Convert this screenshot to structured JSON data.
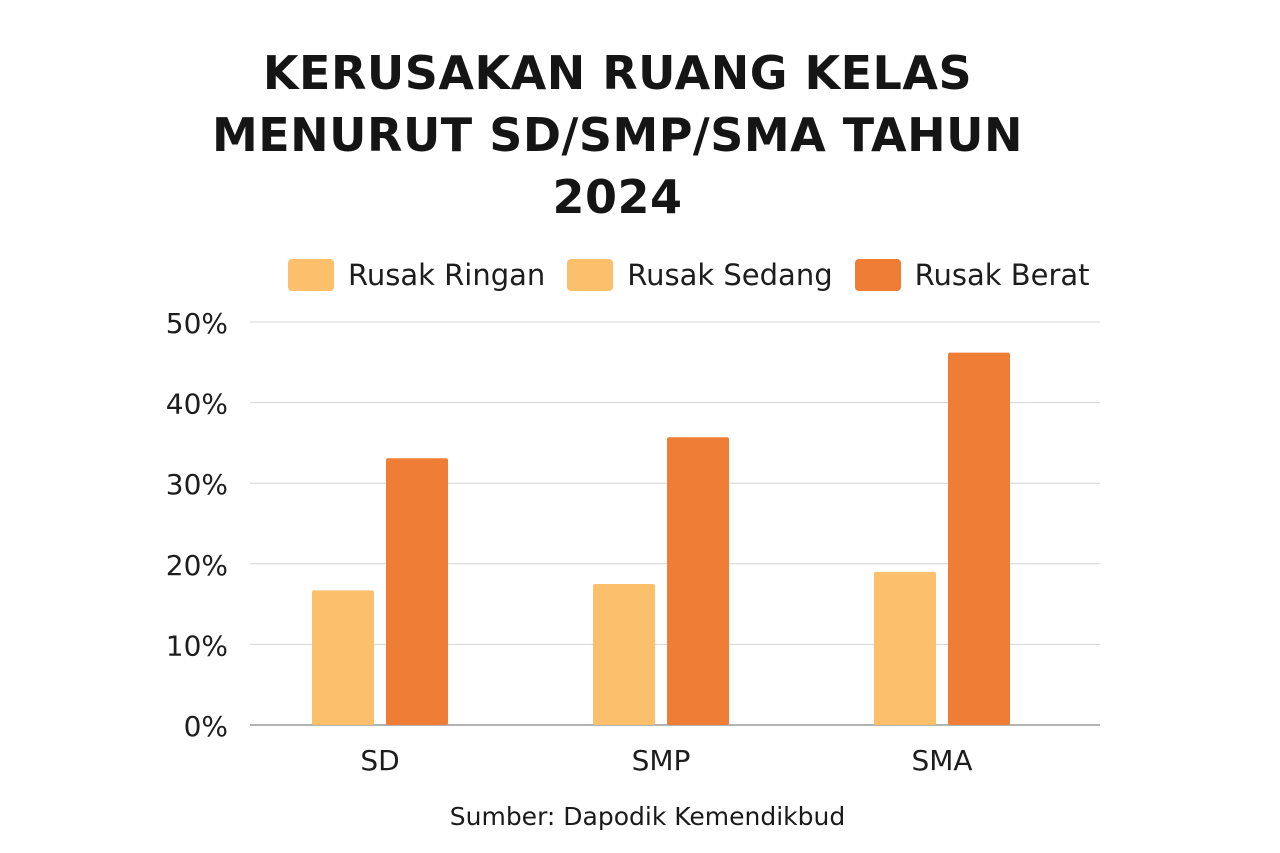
{
  "title_lines": [
    "KERUSAKAN RUANG KELAS",
    "MENURUT SD/SMP/SMA TAHUN",
    "2024"
  ],
  "source": "Sumber: Dapodik Kemendikbud",
  "chart_data": {
    "type": "bar",
    "title": "KERUSAKAN RUANG KELAS MENURUT SD/SMP/SMA TAHUN 2024",
    "categories": [
      "SD",
      "SMP",
      "SMA"
    ],
    "series": [
      {
        "name": "Rusak Ringan",
        "color": "#FCC06D",
        "values": [
          null,
          null,
          null
        ]
      },
      {
        "name": "Rusak Sedang",
        "color": "#FCC06D",
        "values": [
          16.7,
          17.5,
          19.0
        ]
      },
      {
        "name": "Rusak Berat",
        "color": "#EF7D35",
        "values": [
          33.1,
          35.7,
          46.2
        ]
      }
    ],
    "ylim": [
      0,
      50
    ],
    "yticks": [
      0,
      10,
      20,
      30,
      40,
      50
    ],
    "ytick_labels": [
      "0%",
      "10%",
      "20%",
      "30%",
      "40%",
      "50%"
    ],
    "grid": true,
    "legend_position": "top",
    "xlabel": "",
    "ylabel": ""
  }
}
